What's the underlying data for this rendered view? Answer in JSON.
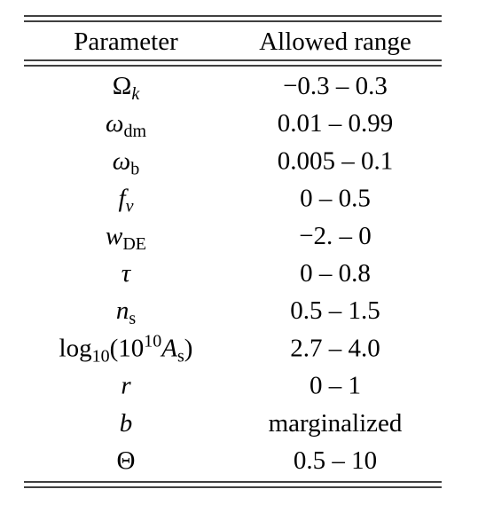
{
  "table": {
    "header": [
      "Parameter",
      "Allowed range"
    ],
    "rows": [
      [
        [
          {
            "text": "Ω",
            "style": "roman"
          },
          {
            "text": "k",
            "style": "sub-italic"
          }
        ],
        "−0.3 – 0.3"
      ],
      [
        [
          {
            "text": "ω",
            "style": "italic"
          },
          {
            "text": "dm",
            "style": "sub"
          }
        ],
        "0.01 – 0.99"
      ],
      [
        [
          {
            "text": "ω",
            "style": "italic"
          },
          {
            "text": "b",
            "style": "sub"
          }
        ],
        "0.005 – 0.1"
      ],
      [
        [
          {
            "text": "f",
            "style": "italic"
          },
          {
            "text": "ν",
            "style": "sub-italic"
          }
        ],
        "0 – 0.5"
      ],
      [
        [
          {
            "text": "w",
            "style": "italic"
          },
          {
            "text": "DE",
            "style": "sub"
          }
        ],
        "−2. – 0"
      ],
      [
        [
          {
            "text": "τ",
            "style": "italic"
          }
        ],
        "0 – 0.8"
      ],
      [
        [
          {
            "text": "n",
            "style": "italic"
          },
          {
            "text": "s",
            "style": "sub"
          }
        ],
        "0.5 – 1.5"
      ],
      [
        [
          {
            "text": "log",
            "style": "roman"
          },
          {
            "text": "10",
            "style": "sub"
          },
          {
            "text": "(10",
            "style": "roman"
          },
          {
            "text": "10",
            "style": "sup"
          },
          {
            "text": "A",
            "style": "italic"
          },
          {
            "text": "s",
            "style": "sub"
          },
          {
            "text": ")",
            "style": "roman"
          }
        ],
        "2.7 – 4.0"
      ],
      [
        [
          {
            "text": "r",
            "style": "italic"
          }
        ],
        "0 – 1"
      ],
      [
        [
          {
            "text": "b",
            "style": "italic"
          }
        ],
        "marginalized"
      ],
      [
        [
          {
            "text": "Θ",
            "style": "roman"
          }
        ],
        "0.5 – 10"
      ]
    ]
  }
}
